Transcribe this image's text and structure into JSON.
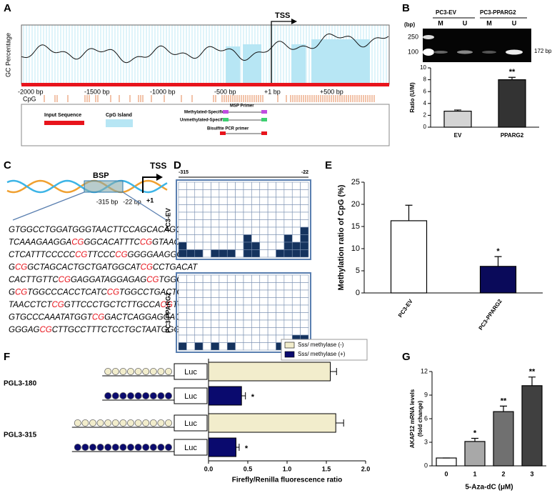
{
  "panel_labels": [
    "A",
    "B",
    "C",
    "D",
    "E",
    "F",
    "G"
  ],
  "panel_a": {
    "y_label": "GC Percentage",
    "tss": "TSS",
    "x_ticks": [
      "-2000 bp",
      "-1500 bp",
      "-1000 bp",
      "-500 bp",
      "+1 bp",
      "+500 bp"
    ],
    "cpg_label": "CpG",
    "legend": {
      "input": "Input Sequence",
      "island": "CpG Island",
      "msp": "MSP Primer",
      "methylated": "Methylated-Specific",
      "unmethylated": "Unmethylated-Specific",
      "bsp": "Bisulfite PCR primer"
    }
  },
  "panel_b_gel": {
    "bp_label": "(bp)",
    "markers": [
      "250",
      "100"
    ],
    "groups": [
      "PC3-EV",
      "PC3-PPARG2"
    ],
    "lanes": [
      "M",
      "U",
      "M",
      "U"
    ],
    "band": "172 bp"
  },
  "panel_c": {
    "box": "BSP",
    "tss": "TSS",
    "start": "-315 bp",
    "end": "-22 bp",
    "plus_one": "+1",
    "sequence": [
      "GTGGCCTGGATGGGTAACTTCCAGCACAGGCCC",
      "TCAAAGAAGGACGGGCACATTTCCGGTAACAGC",
      "CTCATTTCCCCCCGTTCCCCGGGGGAAGGGGG",
      "GCGGCTAGCACTGCTGATGGCATCGCCTGACAT",
      "CACTTGTTCCGGAGGATAGGAGAGCGTGGGCCT",
      "GCGTGGCCCACCTCATCCGTGGCCTGACTGCGT",
      "TAACCTCTCGGTTCCCTGCTCTTGCCACGTGAG",
      "GTGCCCAAATATGGTCGGACTCAGGAGGAGCCA",
      "GGGAGCGCTTGCCTTTCTCCTGCTAATGGGG"
    ]
  },
  "panel_d": {
    "start": "-315",
    "end": "-22",
    "clones": 10,
    "groups": [
      {
        "name": "PC3-EV",
        "methylated": [
          2,
          1,
          1,
          0,
          1,
          1,
          1,
          0,
          3,
          2,
          0,
          0,
          1,
          3,
          2,
          4
        ]
      },
      {
        "name": "PC3-PPARG2",
        "methylated": [
          1,
          0,
          1,
          0,
          1,
          0,
          1,
          0,
          0,
          0,
          0,
          0,
          1,
          0,
          2,
          2
        ]
      }
    ]
  },
  "chart_data": [
    {
      "type": "bar",
      "ylabel": [
        "Ratio (U/M)"
      ],
      "categories": [
        "EV",
        "PPARG2"
      ],
      "values": [
        2.7,
        8.0
      ],
      "errors": [
        0.2,
        0.4
      ],
      "colors": [
        "#d4d4d4",
        "#333333"
      ],
      "annotations": [
        null,
        "**"
      ],
      "ylim": [
        0,
        10
      ],
      "yticks": [
        0,
        2,
        4,
        6,
        8,
        10
      ]
    },
    {
      "type": "bar",
      "ylabel": [
        "Methylation ratio of CpG (%)"
      ],
      "categories": [
        "PC3-EV",
        "PC3-PPARG2"
      ],
      "values": [
        16.3,
        6.0
      ],
      "errors": [
        3.5,
        2.2
      ],
      "colors": [
        "#ffffff",
        "#0a0a5a"
      ],
      "annotations": [
        null,
        "*"
      ],
      "ylim": [
        0,
        25
      ],
      "yticks": [
        0,
        5,
        10,
        15,
        20,
        25
      ]
    },
    {
      "type": "hbar",
      "xlabel": "Firefly/Renilla fluorescence ratio",
      "categories": [
        "PGL3-180",
        "PGL3-315"
      ],
      "cpg_sites": [
        9,
        13
      ],
      "box_label": "Luc",
      "series": [
        {
          "name": "Sss/ methylase (-)",
          "color": "#f2edcc",
          "values": [
            1.55,
            1.62
          ],
          "errors": [
            0.08,
            0.1
          ],
          "annotations": [
            null,
            null
          ]
        },
        {
          "name": "Sss/ methylase (+)",
          "color": "#0a0a6e",
          "values": [
            0.42,
            0.35
          ],
          "errors": [
            0.05,
            0.04
          ],
          "annotations": [
            "*",
            "*"
          ]
        }
      ],
      "xlim": [
        0,
        2
      ],
      "xticks": [
        {
          "value": 0,
          "label": "0.0"
        },
        {
          "value": 0.5,
          "label": "0.5"
        },
        {
          "value": 1,
          "label": "1.0"
        },
        {
          "value": 1.5,
          "label": "1.5"
        },
        {
          "value": 2,
          "label": "2.0"
        }
      ]
    },
    {
      "type": "bar",
      "ylabel": [
        "AKAP12 mRNA levels",
        "(fold change)"
      ],
      "xlabel": "5-Aza-dC (μM)",
      "categories": [
        "0",
        "1",
        "2",
        "3"
      ],
      "values": [
        1.0,
        3.1,
        6.9,
        10.2
      ],
      "errors": [
        0,
        0.4,
        0.7,
        1.1
      ],
      "colors": [
        "#ffffff",
        "#a8a8a8",
        "#707070",
        "#404040"
      ],
      "annotations": [
        null,
        "*",
        "**",
        "**"
      ],
      "ylim": [
        0,
        12
      ],
      "yticks": [
        0,
        3,
        6,
        9,
        12
      ]
    }
  ]
}
